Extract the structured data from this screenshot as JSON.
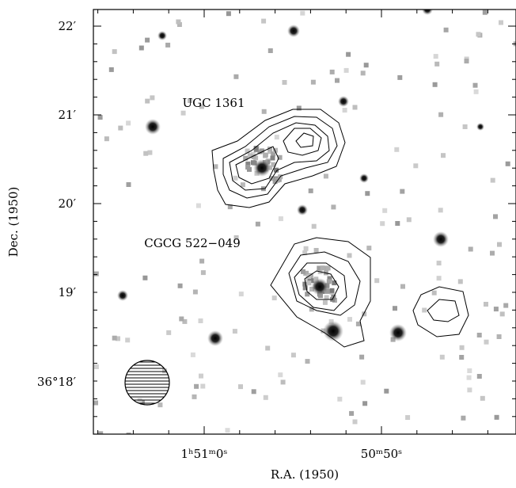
{
  "figure": {
    "x_label": "R.A. (1950)",
    "y_label": "Dec. (1950)",
    "x_ticks": [
      "1ʰ51ᵐ0ˢ",
      "50ᵐ50ˢ"
    ],
    "y_ticks": [
      "22′",
      "21′",
      "20′",
      "19′",
      "36°18′"
    ],
    "annotations": [
      "UGC 1361",
      "CGCG 522−049"
    ]
  }
}
